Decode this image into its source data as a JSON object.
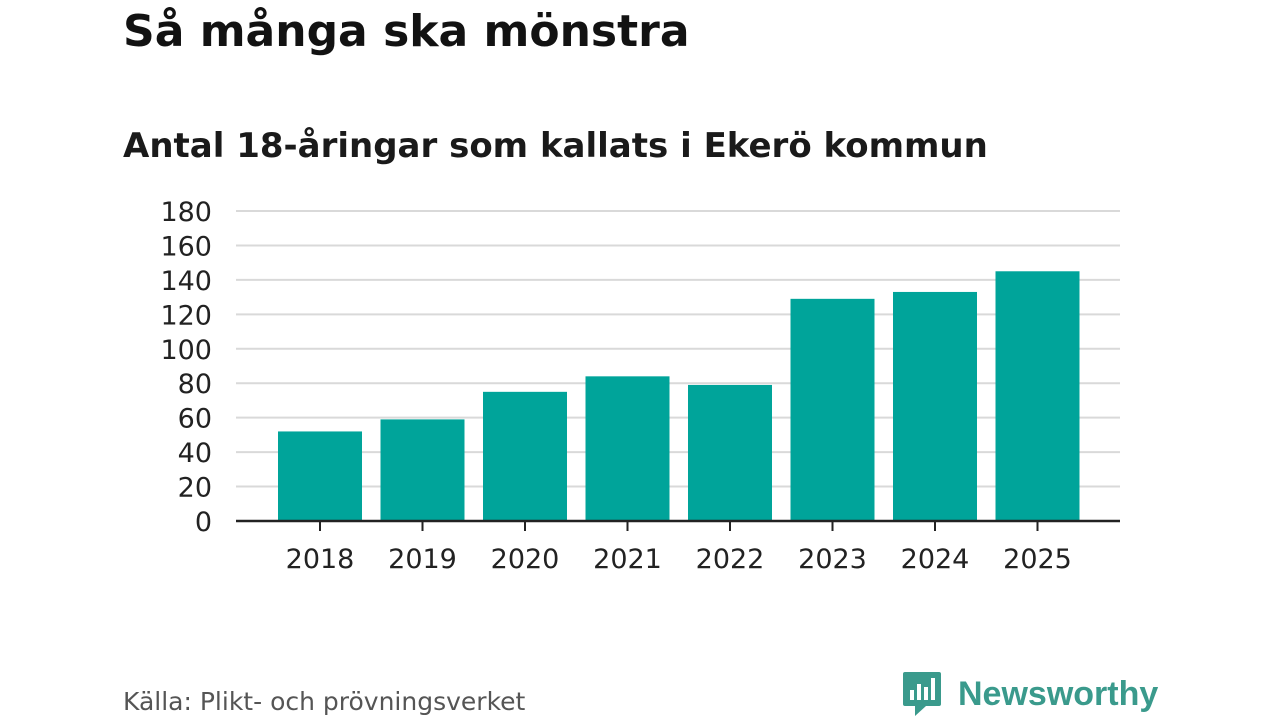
{
  "header": {
    "title": "Så många ska mönstra",
    "subtitle": "Antal 18-åringar som kallats i Ekerö kommun"
  },
  "footer": {
    "source": "Källa: Plikt- och prövningsverket",
    "brand": "Newsworthy",
    "brand_icon": "newsworthy-logo-icon"
  },
  "colors": {
    "bar": "#00a49a",
    "grid": "#d9d9d9",
    "axis": "#222222",
    "brand": "#3a9a8c"
  },
  "chart_data": {
    "type": "bar",
    "title": "Så många ska mönstra",
    "subtitle": "Antal 18-åringar som kallats i Ekerö kommun",
    "xlabel": "",
    "ylabel": "",
    "categories": [
      "2018",
      "2019",
      "2020",
      "2021",
      "2022",
      "2023",
      "2024",
      "2025"
    ],
    "values": [
      52,
      59,
      75,
      84,
      79,
      129,
      133,
      145
    ],
    "ylim": [
      0,
      180
    ],
    "yticks": [
      0,
      20,
      40,
      60,
      80,
      100,
      120,
      140,
      160,
      180
    ],
    "grid": true,
    "legend": "none"
  }
}
